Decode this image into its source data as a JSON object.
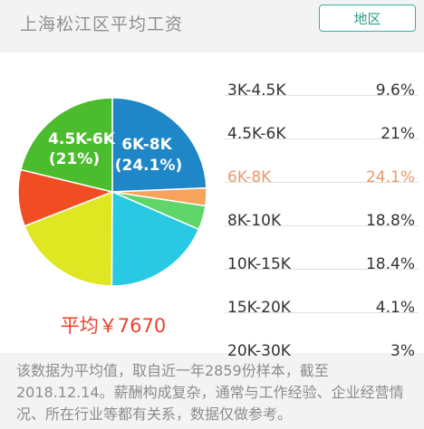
{
  "header": {
    "title": "上海松江区平均工资",
    "region_button": "地区"
  },
  "summary": {
    "average": "平均￥7670"
  },
  "legend": [
    {
      "range": "3K-4.5K",
      "percent": "9.6%"
    },
    {
      "range": "4.5K-6K",
      "percent": "21%"
    },
    {
      "range": "6K-8K",
      "percent": "24.1%"
    },
    {
      "range": "8K-10K",
      "percent": "18.8%"
    },
    {
      "range": "10K-15K",
      "percent": "18.4%"
    },
    {
      "range": "15K-20K",
      "percent": "4.1%"
    },
    {
      "range": "20K-30K",
      "percent": "3%"
    }
  ],
  "pie_labels": {
    "label_6k8k": "6K-8K",
    "label_6k8k_pct": "(24.1%)",
    "label_45k6k": "4.5K-6K",
    "label_45k6k_pct": "(21%)"
  },
  "footnote": "该数据为平均值，取自近一年2859份样本，截至2018.12.14。薪酬构成复杂，通常与工作经验、企业经营情况、所在行业等都有关系，数据仅做参考。",
  "chart_data": {
    "type": "pie",
    "categories": [
      "3K-4.5K",
      "4.5K-6K",
      "6K-8K",
      "8K-10K",
      "10K-15K",
      "15K-20K",
      "20K-30K"
    ],
    "values": [
      9.6,
      21,
      24.1,
      18.8,
      18.4,
      4.1,
      3
    ],
    "highlighted": "6K-8K",
    "colors": {
      "6K-8K": "#1f86c8",
      "20K-30K": "#f7a35c",
      "15K-20K": "#5fd56a",
      "10K-15K": "#29c9e3",
      "8K-10K": "#dfe622",
      "3K-4.5K": "#f04d24",
      "4.5K-6K": "#4cbc2f"
    },
    "legend_placement": "right"
  },
  "colors": {
    "accent": "#2fb59a",
    "average_text": "#e8432d",
    "highlight_text": "#e89a6a"
  }
}
